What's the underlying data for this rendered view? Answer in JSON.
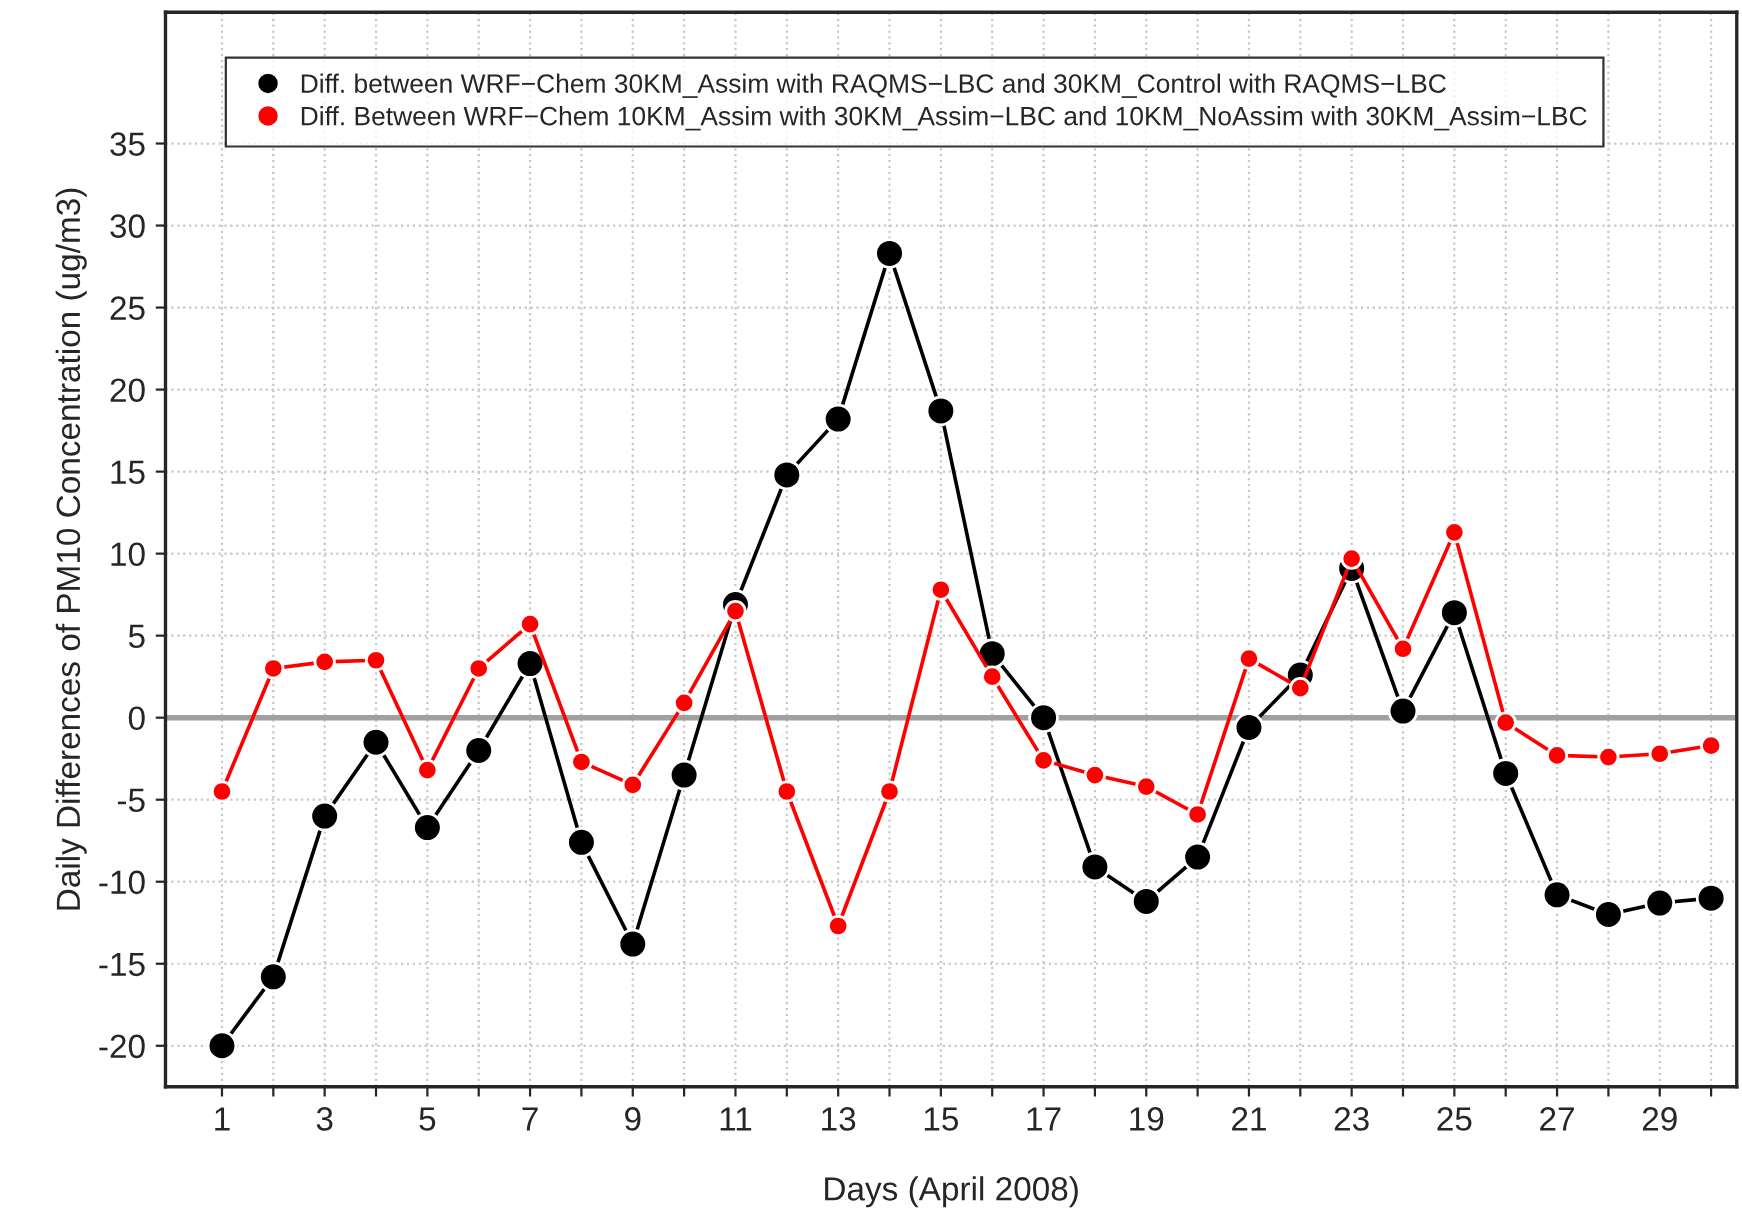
{
  "chart_data": {
    "type": "line",
    "xlabel": "Days (April 2008)",
    "ylabel": "Daily Differences of PM10 Concentration (ug/m3)",
    "x": [
      1,
      2,
      3,
      4,
      5,
      6,
      7,
      8,
      9,
      10,
      11,
      12,
      13,
      14,
      15,
      16,
      17,
      18,
      19,
      20,
      21,
      22,
      23,
      24,
      25,
      26,
      27,
      28,
      29,
      30
    ],
    "series": [
      {
        "name": "Diff. between WRF−Chem 30KM_Assim with RAQMS−LBC and 30KM_Control with RAQMS−LBC",
        "color": "#000000",
        "values": [
          -20,
          -15.8,
          -6,
          -1.5,
          -6.7,
          -2,
          3.3,
          -7.6,
          -13.8,
          -3.5,
          6.9,
          14.8,
          18.2,
          28.3,
          18.7,
          3.9,
          0,
          -9.1,
          -11.2,
          -8.5,
          -0.6,
          2.6,
          9.1,
          0.4,
          6.4,
          -3.4,
          -10.8,
          -12,
          -11.3,
          -11
        ]
      },
      {
        "name": "Diff. Between WRF−Chem 10KM_Assim with 30KM_Assim−LBC and 10KM_NoAssim with 30KM_Assim−LBC",
        "color": "#ff0000",
        "values": [
          -4.5,
          3,
          3.4,
          3.5,
          -3.2,
          3,
          5.7,
          -2.7,
          -4.1,
          0.9,
          6.5,
          -4.5,
          -12.7,
          -4.5,
          7.8,
          2.5,
          -2.6,
          -3.5,
          -4.2,
          -5.9,
          3.6,
          1.8,
          9.7,
          4.2,
          11.3,
          -0.3,
          -2.3,
          -2.4,
          -2.2,
          -1.7
        ]
      }
    ],
    "xlim": [
      -0.1,
      30.5
    ],
    "ylim": [
      -22.5,
      43
    ],
    "xticks": [
      1,
      {
        "value": 2,
        "label": null
      },
      3,
      {
        "value": 4,
        "label": null
      },
      5,
      {
        "value": 6,
        "label": null
      },
      7,
      {
        "value": 8,
        "label": null
      },
      9,
      {
        "value": 10,
        "label": null
      },
      11,
      {
        "value": 12,
        "label": null
      },
      13,
      {
        "value": 14,
        "label": null
      },
      15,
      {
        "value": 16,
        "label": null
      },
      17,
      {
        "value": 18,
        "label": null
      },
      19,
      {
        "value": 20,
        "label": null
      },
      21,
      {
        "value": 22,
        "label": null
      },
      23,
      {
        "value": 24,
        "label": null
      },
      25,
      {
        "value": 26,
        "label": null
      },
      27,
      {
        "value": 28,
        "label": null
      },
      29,
      {
        "value": 30,
        "label": null
      }
    ],
    "yticks": [
      -20,
      -15,
      -10,
      -5,
      0,
      5,
      10,
      15,
      20,
      25,
      30,
      35
    ],
    "ref_lines": [
      {
        "axis": "y",
        "value": 0,
        "color": "#a0a0a0"
      }
    ],
    "grid": true,
    "legend": "top left",
    "marker": "circle",
    "line_style": "solid"
  }
}
